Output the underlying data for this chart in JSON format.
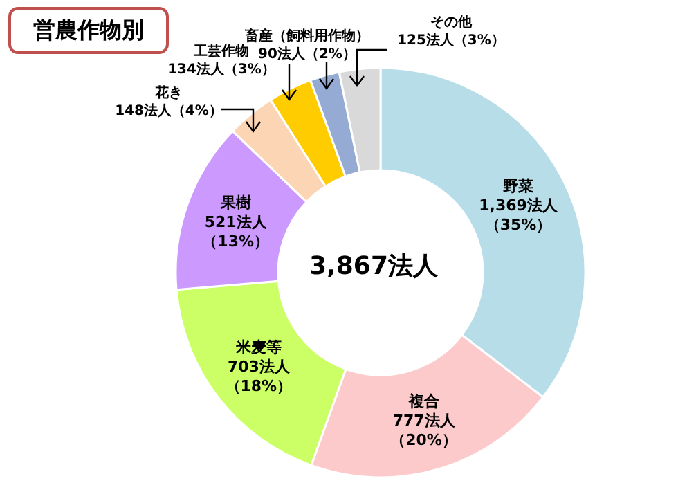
{
  "chart_data": {
    "type": "donut",
    "title": "営農作物別",
    "categories": [
      "野菜",
      "複合",
      "米麦等",
      "果樹",
      "花き",
      "工芸作物",
      "畜産（飼料用作物）",
      "その他"
    ],
    "values": [
      1369,
      777,
      703,
      521,
      148,
      134,
      90,
      125
    ],
    "colors": [
      "#b7dde8",
      "#fccaca",
      "#ccff66",
      "#cc99ff",
      "#fcd5b5",
      "#ffcc00",
      "#95abd4",
      "#d9d9d9"
    ],
    "value_labels": [
      "1,369法人（35%）",
      "777法人（20%）",
      "703法人（18%）",
      "521法人（13%）",
      "148法人（4%）",
      "134法人（3%）",
      "90法人（2%）",
      "125法人（3%）"
    ],
    "annotations": [
      "3,867法人"
    ]
  }
}
